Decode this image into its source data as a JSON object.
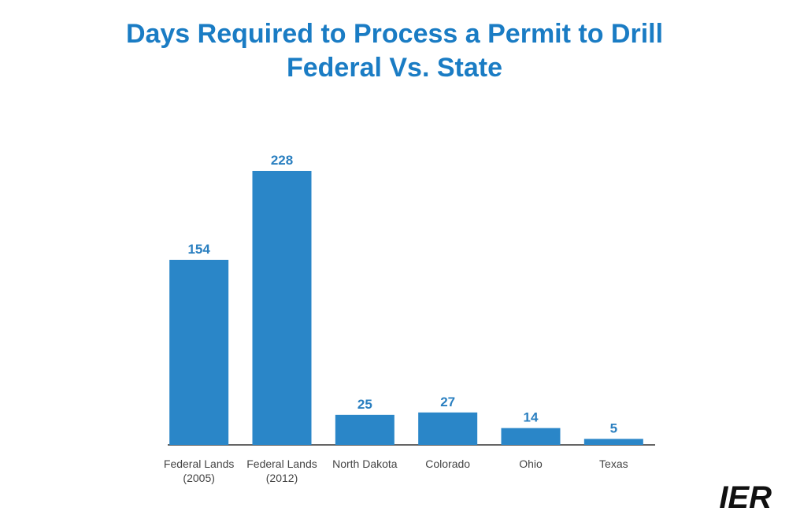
{
  "chart_data": {
    "type": "bar",
    "title": "Days Required to Process a Permit to Drill",
    "subtitle": "Federal Vs. State",
    "categories": [
      "Federal Lands (2005)",
      "Federal Lands (2012)",
      "North Dakota",
      "Colorado",
      "Ohio",
      "Texas"
    ],
    "values": [
      154,
      228,
      25,
      27,
      14,
      5
    ],
    "color": "#2a86c8"
  },
  "logo": "IER"
}
